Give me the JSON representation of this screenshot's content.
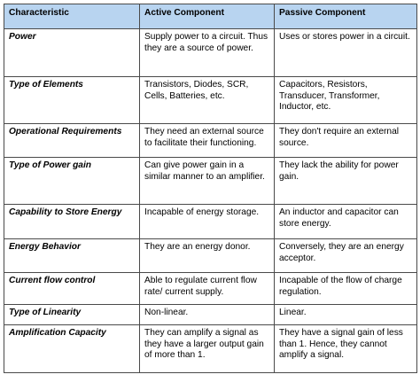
{
  "table": {
    "headers": [
      "Characteristic",
      "Active Component",
      "Passive Component"
    ],
    "rows": [
      [
        "Power",
        "Supply power to a circuit. Thus they are a source of power.",
        "Uses or stores power in a circuit."
      ],
      [
        "Type of Elements",
        "Transistors, Diodes, SCR, Cells, Batteries, etc.",
        "Capacitors, Resistors, Transducer, Transformer, Inductor, etc."
      ],
      [
        "Operational Requirements",
        "They need an external source to facilitate their functioning.",
        "They don't require an external source."
      ],
      [
        "Type of Power gain",
        "Can give power gain in a similar manner to an amplifier.",
        "They lack the ability for power gain."
      ],
      [
        "Capability to Store Energy",
        "Incapable of energy storage.",
        "An inductor and capacitor can store energy."
      ],
      [
        "Energy Behavior",
        "They are an energy donor.",
        "Conversely, they are an energy acceptor."
      ],
      [
        "Current flow control",
        "Able to regulate current flow rate/ current supply.",
        "Incapable of the flow of charge regulation."
      ],
      [
        "Type of Linearity",
        "Non-linear.",
        "Linear."
      ],
      [
        "Amplification Capacity",
        "They can amplify a signal as they have a larger output gain of more than 1.",
        "They have a signal gain of less than 1. Hence, they cannot amplify a signal."
      ]
    ]
  },
  "colors": {
    "header_bg": "#b8d4f0",
    "border": "#4a4a4a",
    "text": "#000000"
  }
}
